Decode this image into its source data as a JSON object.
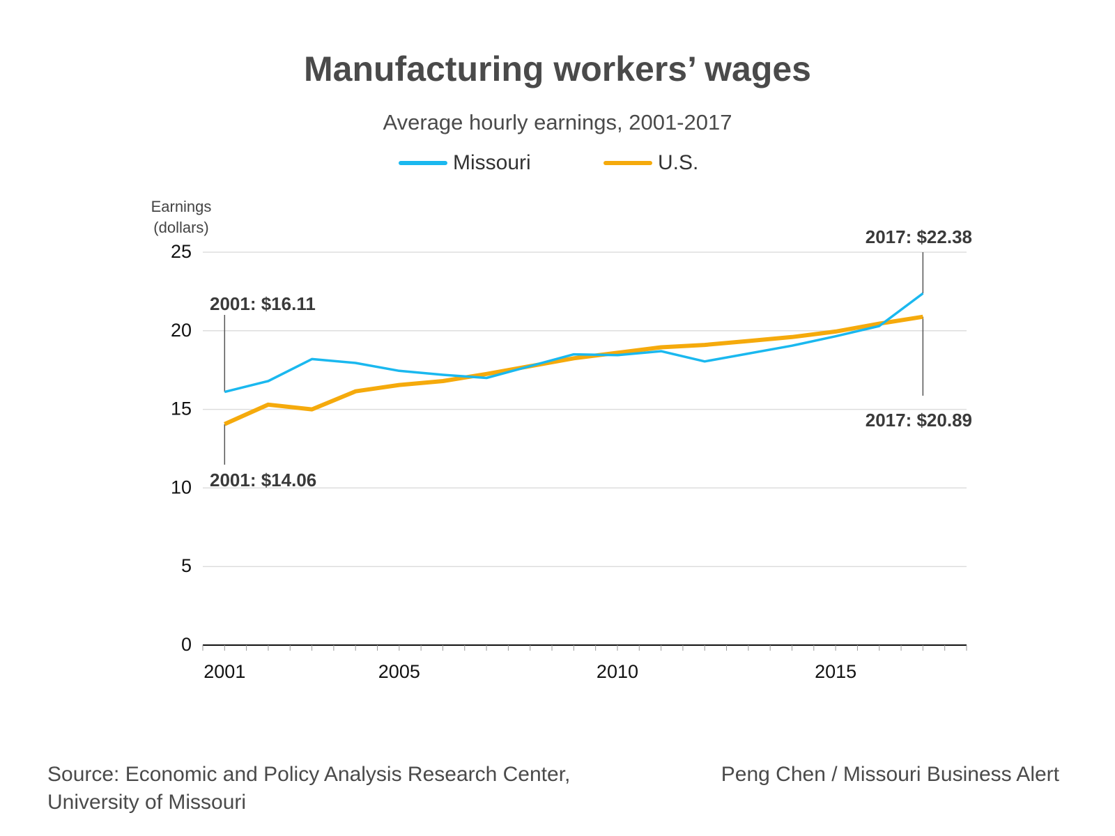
{
  "title": "Manufacturing workers’ wages",
  "subtitle": "Average hourly earnings, 2001-2017",
  "legend": [
    {
      "name": "Missouri",
      "color": "#1ab8ef"
    },
    {
      "name": "U.S.",
      "color": "#f5aa0c"
    }
  ],
  "ylabel_line1": "Earnings",
  "ylabel_line2": "(dollars)",
  "chart_data": {
    "type": "line",
    "title": "Manufacturing workers’ wages",
    "subtitle": "Average hourly earnings, 2001-2017",
    "xlabel": "",
    "ylabel": "Earnings (dollars)",
    "x": [
      2001,
      2002,
      2003,
      2004,
      2005,
      2006,
      2007,
      2008,
      2009,
      2010,
      2011,
      2012,
      2013,
      2014,
      2015,
      2016,
      2017
    ],
    "xlim": [
      2000.5,
      2018
    ],
    "ylim": [
      0,
      25
    ],
    "xticks": [
      2001,
      2005,
      2010,
      2015
    ],
    "yticks": [
      0,
      5,
      10,
      15,
      20,
      25
    ],
    "grid": true,
    "legend_position": "top",
    "series": [
      {
        "name": "Missouri",
        "color": "#1ab8ef",
        "values": [
          16.11,
          16.8,
          18.2,
          17.95,
          17.45,
          17.2,
          17.0,
          17.75,
          18.5,
          18.45,
          18.7,
          18.05,
          18.55,
          19.05,
          19.65,
          20.3,
          22.38
        ]
      },
      {
        "name": "U.S.",
        "color": "#f5aa0c",
        "values": [
          14.06,
          15.3,
          15.0,
          16.15,
          16.55,
          16.8,
          17.25,
          17.75,
          18.25,
          18.6,
          18.95,
          19.1,
          19.35,
          19.6,
          19.95,
          20.45,
          20.89
        ]
      }
    ],
    "annotations": [
      {
        "text": "2001: $16.11",
        "x": 2001,
        "y": 16.11
      },
      {
        "text": "2001: $14.06",
        "x": 2001,
        "y": 14.06
      },
      {
        "text": "2017: $22.38",
        "x": 2017,
        "y": 22.38
      },
      {
        "text": "2017: $20.89",
        "x": 2017,
        "y": 20.89
      }
    ]
  },
  "source": {
    "line1": "Source: Economic and Policy Analysis Research Center,",
    "line2": "University of Missouri"
  },
  "credit": "Peng Chen / Missouri Business Alert"
}
